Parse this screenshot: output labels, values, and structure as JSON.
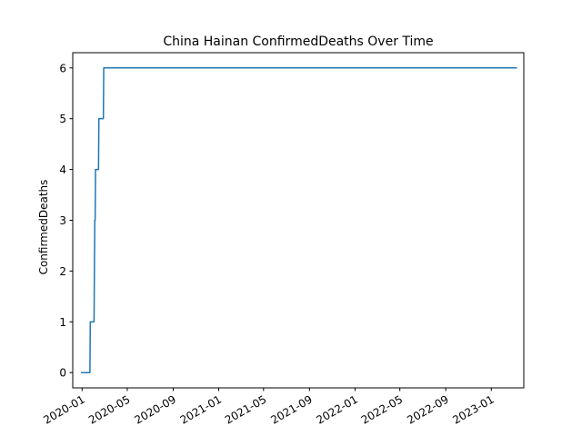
{
  "chart_data": {
    "type": "line",
    "title": "China Hainan ConfirmedDeaths Over Time",
    "xlabel": "",
    "ylabel": "ConfirmedDeaths",
    "grid": false,
    "xlim": [
      "2019-12-07",
      "2023-03-29"
    ],
    "ylim": [
      -0.3,
      6.3
    ],
    "x_ticks": [
      "2020-01",
      "2020-05",
      "2020-09",
      "2021-01",
      "2021-05",
      "2021-09",
      "2022-01",
      "2022-05",
      "2022-09",
      "2023-01"
    ],
    "y_ticks": [
      0,
      1,
      2,
      3,
      4,
      5,
      6
    ],
    "colors": {
      "line": "#1f77b4"
    },
    "series": [
      {
        "x": [
          "2019-12-31",
          "2020-01-22",
          "2020-01-23",
          "2020-02-02",
          "2020-02-03",
          "2020-02-04",
          "2020-02-05",
          "2020-02-06",
          "2020-02-14",
          "2020-02-15",
          "2020-02-27",
          "2020-02-28",
          "2023-03-09"
        ],
        "values": [
          0,
          0,
          1,
          1,
          2,
          3,
          3,
          4,
          4,
          5,
          5,
          6,
          6
        ]
      }
    ]
  }
}
